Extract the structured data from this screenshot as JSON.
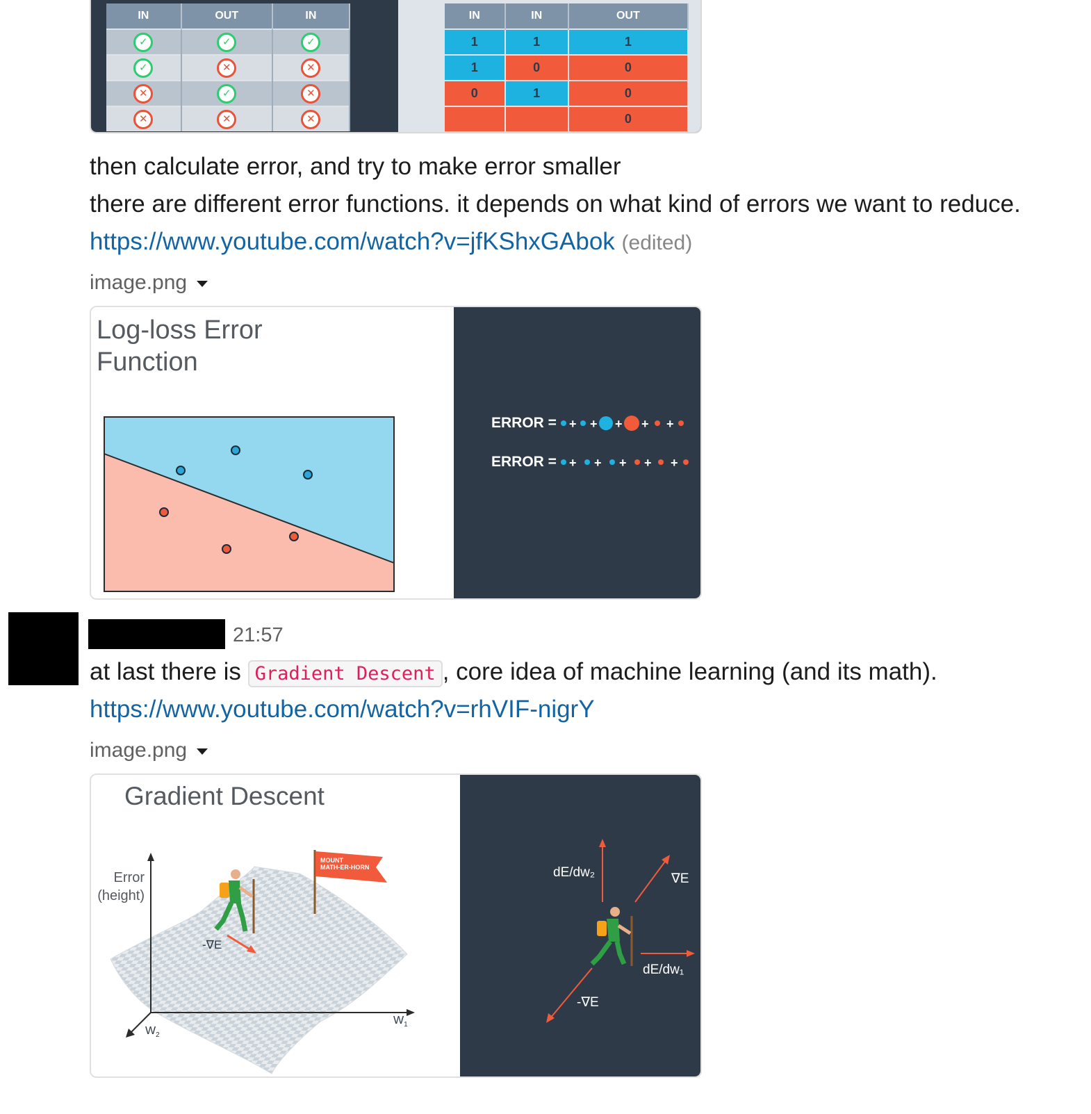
{
  "top_image": {
    "left_table": {
      "headers": [
        "IN",
        "OUT",
        "IN"
      ],
      "rows": [
        [
          "check",
          "check",
          "check"
        ],
        [
          "check",
          "cross",
          "cross"
        ],
        [
          "cross",
          "check",
          "cross"
        ],
        [
          "cross",
          "cross",
          "cross"
        ]
      ]
    },
    "right_table": {
      "headers": [
        "IN",
        "IN",
        "OUT"
      ],
      "rows": [
        [
          "1",
          "1",
          "1"
        ],
        [
          "1",
          "0",
          "0"
        ],
        [
          "0",
          "1",
          "0"
        ],
        [
          "",
          "",
          "0"
        ]
      ],
      "colors": [
        [
          "blue",
          "blue",
          "blue"
        ],
        [
          "blue",
          "red",
          "red"
        ],
        [
          "red",
          "blue",
          "red"
        ],
        [
          "red",
          "red",
          "red"
        ]
      ]
    }
  },
  "message1": {
    "line1": "then calculate error, and try to make error smaller",
    "line2": "there are different error functions. it depends on what kind of errors we want to reduce.",
    "link": "https://www.youtube.com/watch?v=jfKShxGAbok",
    "edited": "(edited)",
    "attachment_name": "image.png"
  },
  "logloss_image": {
    "title_line1": "Log-loss Error",
    "title_line2": "Function",
    "error_label": "ERROR ="
  },
  "message2": {
    "time": "21:57",
    "text_before": "at last there is ",
    "code": "Gradient Descent",
    "text_after": ", core idea of machine learning (and its math).",
    "link": "https://www.youtube.com/watch?v=rhVIF-nigrY",
    "attachment_name": "image.png"
  },
  "gradient_image": {
    "title": "Gradient Descent",
    "error_label_1": "Error",
    "error_label_2": "(height)",
    "flag_line1": "MOUNT",
    "flag_line2": "MATH-ER-HORN",
    "neg_grad": "-∇E",
    "w1": "W",
    "w1_sub": "1",
    "w2": "W",
    "w2_sub": "2",
    "dedw2": "dE/dw₂",
    "grad": "∇E",
    "dedw1": "dE/dw₁",
    "neg_grad_right": "-∇E"
  },
  "colors": {
    "link": "#1264a3",
    "dark_panel": "#2e3a48",
    "blue": "#1eb2e0",
    "red": "#f15a3a",
    "check_green": "#2ecc71"
  }
}
